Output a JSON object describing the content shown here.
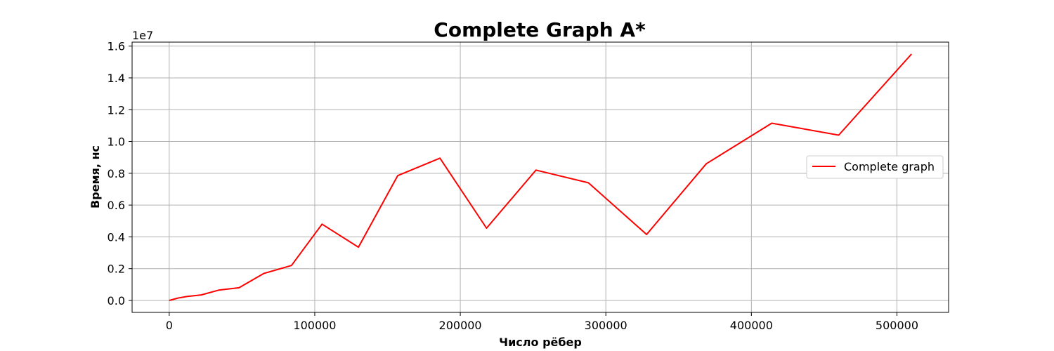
{
  "chart_data": {
    "type": "line",
    "title": "Complete Graph A*",
    "xlabel": "Число рёбер",
    "ylabel": "Время, нс",
    "y_offset_label": "1e7",
    "xlim": [
      -25500,
      535500
    ],
    "ylim": [
      -0.075,
      1.625
    ],
    "x_ticks": [
      0,
      100000,
      200000,
      300000,
      400000,
      500000
    ],
    "x_tick_labels": [
      "0",
      "100000",
      "200000",
      "300000",
      "400000",
      "500000"
    ],
    "y_ticks": [
      0.0,
      0.2,
      0.4,
      0.6,
      0.8,
      1.0,
      1.2,
      1.4,
      1.6
    ],
    "y_tick_labels": [
      "0.0",
      "0.2",
      "0.4",
      "0.6",
      "0.8",
      "1.0",
      "1.2",
      "1.4",
      "1.6"
    ],
    "grid": true,
    "legend_position": "center-right",
    "series": [
      {
        "name": "Complete graph",
        "color": "#ff0000",
        "x": [
          0,
          6000,
          12000,
          22000,
          34000,
          48000,
          65000,
          84000,
          105000,
          130000,
          157000,
          186000,
          218000,
          252000,
          288000,
          328000,
          369000,
          414000,
          460000,
          510000
        ],
        "y": [
          0.0,
          0.015,
          0.025,
          0.035,
          0.065,
          0.08,
          0.17,
          0.22,
          0.48,
          0.335,
          0.785,
          0.895,
          0.455,
          0.82,
          0.74,
          0.415,
          0.86,
          1.115,
          1.04,
          1.55
        ]
      }
    ]
  }
}
